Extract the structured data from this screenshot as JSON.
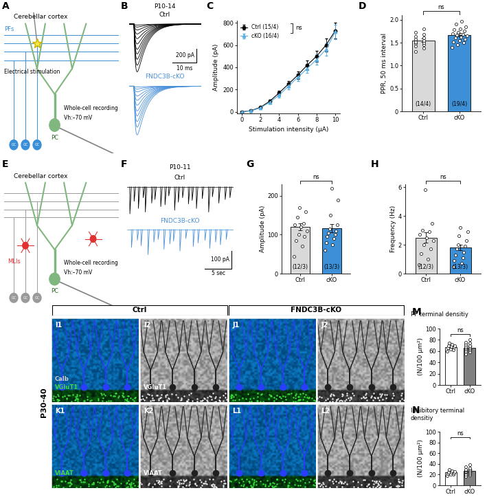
{
  "schematics": [
    {
      "panel": "A",
      "texts": {
        "region": "Cerebellar cortex",
        "fibers": "PFs",
        "stimulation": "Electrical stimulation",
        "cell": "PC",
        "recording": "Whole-cell recording",
        "holding": "Vh:–70 mV",
        "granule": "GC"
      }
    },
    {
      "panel": "E",
      "texts": {
        "region": "Cerebellar cortex",
        "interneurons": "MLIs",
        "cell": "PC",
        "recording": "Whole-cell recording",
        "holding": "Vh:–70 mV",
        "granule": "GC"
      }
    }
  ],
  "traces": [
    {
      "panel": "B",
      "age": "P10-14",
      "groups": [
        {
          "name": "Ctrl",
          "color": "#000000",
          "peaks": [
            15,
            45,
            90,
            150,
            220,
            300,
            380,
            450,
            530,
            620,
            720
          ]
        },
        {
          "name": "FNDC3B-cKO",
          "color": "#4a90d9",
          "peaks": [
            12,
            40,
            80,
            140,
            200,
            270,
            350,
            420,
            500,
            580,
            690
          ]
        }
      ],
      "scale_x": {
        "value": 10,
        "label": "10 ms"
      },
      "scale_y": {
        "value": 200,
        "label": "200 pA"
      }
    },
    {
      "panel": "F",
      "age": "P10-11",
      "groups": [
        {
          "name": "Ctrl",
          "color": "#000000",
          "event_times": [
            0.5,
            1.3,
            2.1,
            3.0,
            3.4,
            4.6,
            5.2,
            6.3,
            7.1,
            7.8,
            8.9,
            9.6,
            10.4,
            11.5,
            12.2,
            13.0,
            14.1,
            15.3,
            16.0,
            17.2,
            18.4,
            19.3
          ],
          "event_amplitudes": [
            150,
            80,
            120,
            60,
            140,
            90,
            70,
            110,
            100,
            50,
            130,
            85,
            60,
            95,
            75,
            120,
            65,
            140,
            55,
            90,
            70,
            60
          ]
        },
        {
          "name": "FNDC3B-cKO",
          "color": "#4a90d9",
          "event_times": [
            0.8,
            1.9,
            2.6,
            3.9,
            5.0,
            5.8,
            6.9,
            8.0,
            8.7,
            9.9,
            11.0,
            12.4,
            13.3,
            14.6,
            15.5,
            16.6,
            17.5,
            18.6
          ],
          "event_amplitudes": [
            100,
            60,
            90,
            140,
            70,
            55,
            110,
            80,
            65,
            120,
            50,
            95,
            75,
            60,
            105,
            70,
            85,
            55
          ]
        }
      ],
      "scale_x": {
        "value": 5,
        "label": "5 sec"
      },
      "scale_y": {
        "value": 100,
        "label": "100 pA"
      }
    }
  ],
  "chart_data": [
    {
      "panel": "C",
      "type": "line",
      "x": [
        0,
        1,
        2,
        3,
        4,
        5,
        6,
        7,
        8,
        9,
        10
      ],
      "series": [
        {
          "name": "Ctrl (15/4)",
          "color": "#000000",
          "marker": "circle",
          "values": [
            0,
            10,
            40,
            95,
            170,
            250,
            330,
            420,
            500,
            600,
            730
          ],
          "errors": [
            2,
            4,
            8,
            15,
            20,
            28,
            35,
            40,
            50,
            58,
            70
          ]
        },
        {
          "name": "cKO (16/4)",
          "color": "#5aaee0",
          "marker": "triangle",
          "values": [
            0,
            8,
            35,
            85,
            150,
            230,
            310,
            390,
            470,
            560,
            720
          ],
          "errors": [
            2,
            4,
            8,
            14,
            20,
            26,
            32,
            40,
            48,
            55,
            65
          ]
        }
      ],
      "xlabel": "Stimulation intensity (μA)",
      "ylabel": "Amplitude (pA)",
      "xlim": [
        -0.5,
        10.5
      ],
      "ylim": [
        -15,
        820
      ],
      "xticks": [
        0,
        2,
        4,
        6,
        8,
        10
      ],
      "yticks": [
        0,
        200,
        400,
        600,
        800
      ],
      "legend": "upper left",
      "annotation": "ns"
    },
    {
      "panel": "D",
      "type": "bar",
      "categories": [
        "Ctrl",
        "cKO"
      ],
      "values": [
        1.55,
        1.67
      ],
      "errors": [
        0.04,
        0.04
      ],
      "colors": [
        "#d9d9d9",
        "#3d8fd6"
      ],
      "points": [
        [
          1.3,
          1.38,
          1.42,
          1.45,
          1.48,
          1.5,
          1.52,
          1.55,
          1.57,
          1.6,
          1.63,
          1.68,
          1.72,
          1.8
        ],
        [
          1.4,
          1.45,
          1.5,
          1.52,
          1.55,
          1.58,
          1.6,
          1.62,
          1.65,
          1.67,
          1.68,
          1.7,
          1.72,
          1.75,
          1.78,
          1.8,
          1.85,
          1.9,
          1.97
        ]
      ],
      "n_labels": [
        "(14/4)",
        "(19/4)"
      ],
      "ylabel": "PPR, 50 ms interval",
      "ylim": [
        0,
        2.1
      ],
      "yticks": [
        0,
        0.5,
        {
          "value": 1,
          "label": "1.0"
        },
        1.5,
        {
          "value": 2,
          "label": "2.0"
        }
      ],
      "annotation": "ns"
    },
    {
      "panel": "G",
      "type": "bar",
      "categories": [
        "Ctrl",
        "cKO"
      ],
      "values": [
        120,
        117
      ],
      "errors": [
        9,
        10
      ],
      "colors": [
        "#d9d9d9",
        "#3d8fd6"
      ],
      "points": [
        [
          45,
          70,
          85,
          95,
          100,
          110,
          120,
          125,
          130,
          145,
          160,
          170
        ],
        [
          60,
          75,
          80,
          90,
          95,
          100,
          105,
          110,
          115,
          125,
          150,
          190,
          220
        ]
      ],
      "n_labels": [
        "(12/3)",
        "(13/3)"
      ],
      "ylabel": "Amplitude (pA)",
      "ylim": [
        0,
        230
      ],
      "yticks": [
        0,
        100,
        200
      ],
      "annotation": "ns"
    },
    {
      "panel": "H",
      "type": "bar",
      "categories": [
        "Ctrl",
        "cKO"
      ],
      "values": [
        2.5,
        1.8
      ],
      "errors": [
        0.35,
        0.2
      ],
      "colors": [
        "#d9d9d9",
        "#3d8fd6"
      ],
      "points": [
        [
          0.6,
          1.0,
          1.4,
          1.7,
          2.0,
          2.3,
          2.5,
          2.7,
          2.9,
          3.0,
          3.5,
          5.8
        ],
        [
          0.5,
          0.7,
          0.9,
          1.1,
          1.3,
          1.5,
          1.7,
          1.9,
          2.0,
          2.3,
          2.6,
          2.9,
          3.2
        ]
      ],
      "n_labels": [
        "(12/3)",
        "(13/3)"
      ],
      "ylabel": "Frequency (Hz)",
      "ylim": [
        0,
        6.2
      ],
      "yticks": [
        0,
        2,
        4,
        6
      ],
      "annotation": "ns"
    },
    {
      "panel": "M",
      "type": "bar",
      "title": "PF terminal densitiy",
      "categories": [
        "Ctrl",
        "cKO"
      ],
      "values": [
        67,
        66
      ],
      "errors": [
        2,
        3
      ],
      "colors": [
        "#ffffff",
        "#808080"
      ],
      "points": [
        [
          60,
          62,
          64,
          66,
          67,
          68,
          69,
          70,
          72,
          74
        ],
        [
          55,
          58,
          60,
          62,
          63,
          65,
          66,
          67,
          68,
          70,
          72,
          74,
          76,
          80
        ]
      ],
      "ylabel": "(N/100 μm²)",
      "ylim": [
        0,
        100
      ],
      "yticks": [
        0,
        20,
        40,
        60,
        80,
        100
      ],
      "annotation": "ns"
    },
    {
      "panel": "N",
      "type": "bar",
      "title": "Inhibitory terminal densitiy",
      "categories": [
        "Ctrl",
        "cKO"
      ],
      "values": [
        24,
        27
      ],
      "errors": [
        1.5,
        2
      ],
      "colors": [
        "#ffffff",
        "#808080"
      ],
      "points": [
        [
          18,
          20,
          21,
          22,
          23,
          24,
          25,
          26,
          27,
          29
        ],
        [
          17,
          19,
          21,
          22,
          24,
          25,
          26,
          27,
          28,
          29,
          30,
          32,
          34,
          38
        ]
      ],
      "ylabel": "(N/100 μm²)",
      "ylim": [
        0,
        100
      ],
      "yticks": [
        0,
        20,
        40,
        60,
        80,
        100
      ],
      "annotation": "ns"
    }
  ],
  "micrographs": {
    "age": "P30-40",
    "columns": [
      "Ctrl",
      "FNDC3B-cKO"
    ],
    "rows": [
      {
        "labels": [
          "I1",
          "I2",
          "J1",
          "J2"
        ],
        "stains": [
          [
            {
              "text": "Calb",
              "color": "#d0d0d0"
            },
            {
              "text": "VGluT1",
              "color": "#3fdc3f"
            }
          ],
          [
            {
              "text": "VGluT1",
              "color": "#ffffff"
            }
          ],
          [],
          []
        ]
      },
      {
        "labels": [
          "K1",
          "K2",
          "L1",
          "L2"
        ],
        "stains": [
          [
            {
              "text": "VIAAT",
              "color": "#3fdc3f"
            }
          ],
          [
            {
              "text": "VIAAT",
              "color": "#ffffff"
            }
          ],
          [],
          []
        ]
      }
    ]
  }
}
